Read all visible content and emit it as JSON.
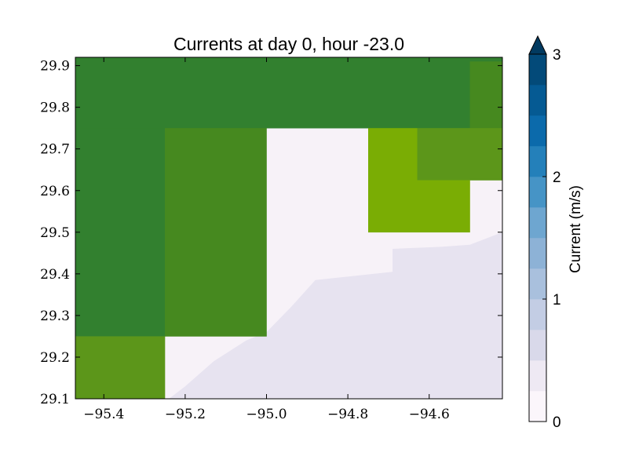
{
  "chart_data": {
    "type": "heatmap",
    "title": "Currents at day 0, hour -23.0",
    "xlim": [
      -95.47,
      -94.42
    ],
    "ylim": [
      29.1,
      29.92
    ],
    "xticks": [
      -95.4,
      -95.2,
      -95.0,
      -94.8,
      -94.6
    ],
    "xtick_labels": [
      "−95.4",
      "−95.2",
      "−95.0",
      "−94.8",
      "−94.6"
    ],
    "yticks": [
      29.1,
      29.2,
      29.3,
      29.4,
      29.5,
      29.6,
      29.7,
      29.8,
      29.9
    ],
    "ytick_labels": [
      "29.1",
      "29.2",
      "29.3",
      "29.4",
      "29.5",
      "29.6",
      "29.7",
      "29.8",
      "29.9"
    ],
    "colors": {
      "dark_green": "#32802f",
      "mid_green": "#46891f",
      "grass_green": "#5c961a",
      "lime": "#7aad04",
      "pale": "#f7f2f8",
      "lavender": "#e7e3f0",
      "frame": "#000000"
    },
    "cells": [
      {
        "x0": -95.47,
        "x1": -94.42,
        "y0": 29.75,
        "y1": 29.92,
        "color": "dark_green"
      },
      {
        "x0": -95.47,
        "x1": -95.25,
        "y0": 29.25,
        "y1": 29.75,
        "color": "dark_green"
      },
      {
        "x0": -94.5,
        "x1": -94.42,
        "y0": 29.75,
        "y1": 29.91,
        "color": "mid_green"
      },
      {
        "x0": -95.25,
        "x1": -95.0,
        "y0": 29.25,
        "y1": 29.75,
        "color": "mid_green"
      },
      {
        "x0": -95.47,
        "x1": -95.25,
        "y0": 29.1,
        "y1": 29.25,
        "color": "grass_green"
      },
      {
        "x0": -94.63,
        "x1": -94.42,
        "y0": 29.625,
        "y1": 29.75,
        "color": "grass_green"
      },
      {
        "x0": -94.75,
        "x1": -94.63,
        "y0": 29.625,
        "y1": 29.75,
        "color": "lime"
      },
      {
        "x0": -94.75,
        "x1": -94.5,
        "y0": 29.5,
        "y1": 29.625,
        "color": "lime"
      }
    ],
    "land_boundary": [
      [
        -95.24,
        29.1
      ],
      [
        -95.2,
        29.13
      ],
      [
        -95.13,
        29.19
      ],
      [
        -95.05,
        29.24
      ],
      [
        -95.0,
        29.26
      ],
      [
        -94.94,
        29.32
      ],
      [
        -94.88,
        29.385
      ],
      [
        -94.69,
        29.405
      ],
      [
        -94.69,
        29.46
      ],
      [
        -94.57,
        29.465
      ],
      [
        -94.5,
        29.47
      ],
      [
        -94.42,
        29.5
      ],
      [
        -94.42,
        29.1
      ]
    ],
    "colorbar": {
      "label": "Current (m/s)",
      "min": 0,
      "max": 3,
      "ticks": [
        0,
        1,
        2,
        3
      ],
      "tick_labels": [
        "0",
        "1",
        "2",
        "3"
      ],
      "levels": [
        "#fbf6fb",
        "#eee9f3",
        "#d9d9ea",
        "#c3cde4",
        "#a9c0dd",
        "#8db2d6",
        "#6ea6d0",
        "#4694c6",
        "#2480ba",
        "#0b6aab",
        "#055a93",
        "#034a79",
        "#023a60"
      ],
      "extend": "max"
    }
  }
}
